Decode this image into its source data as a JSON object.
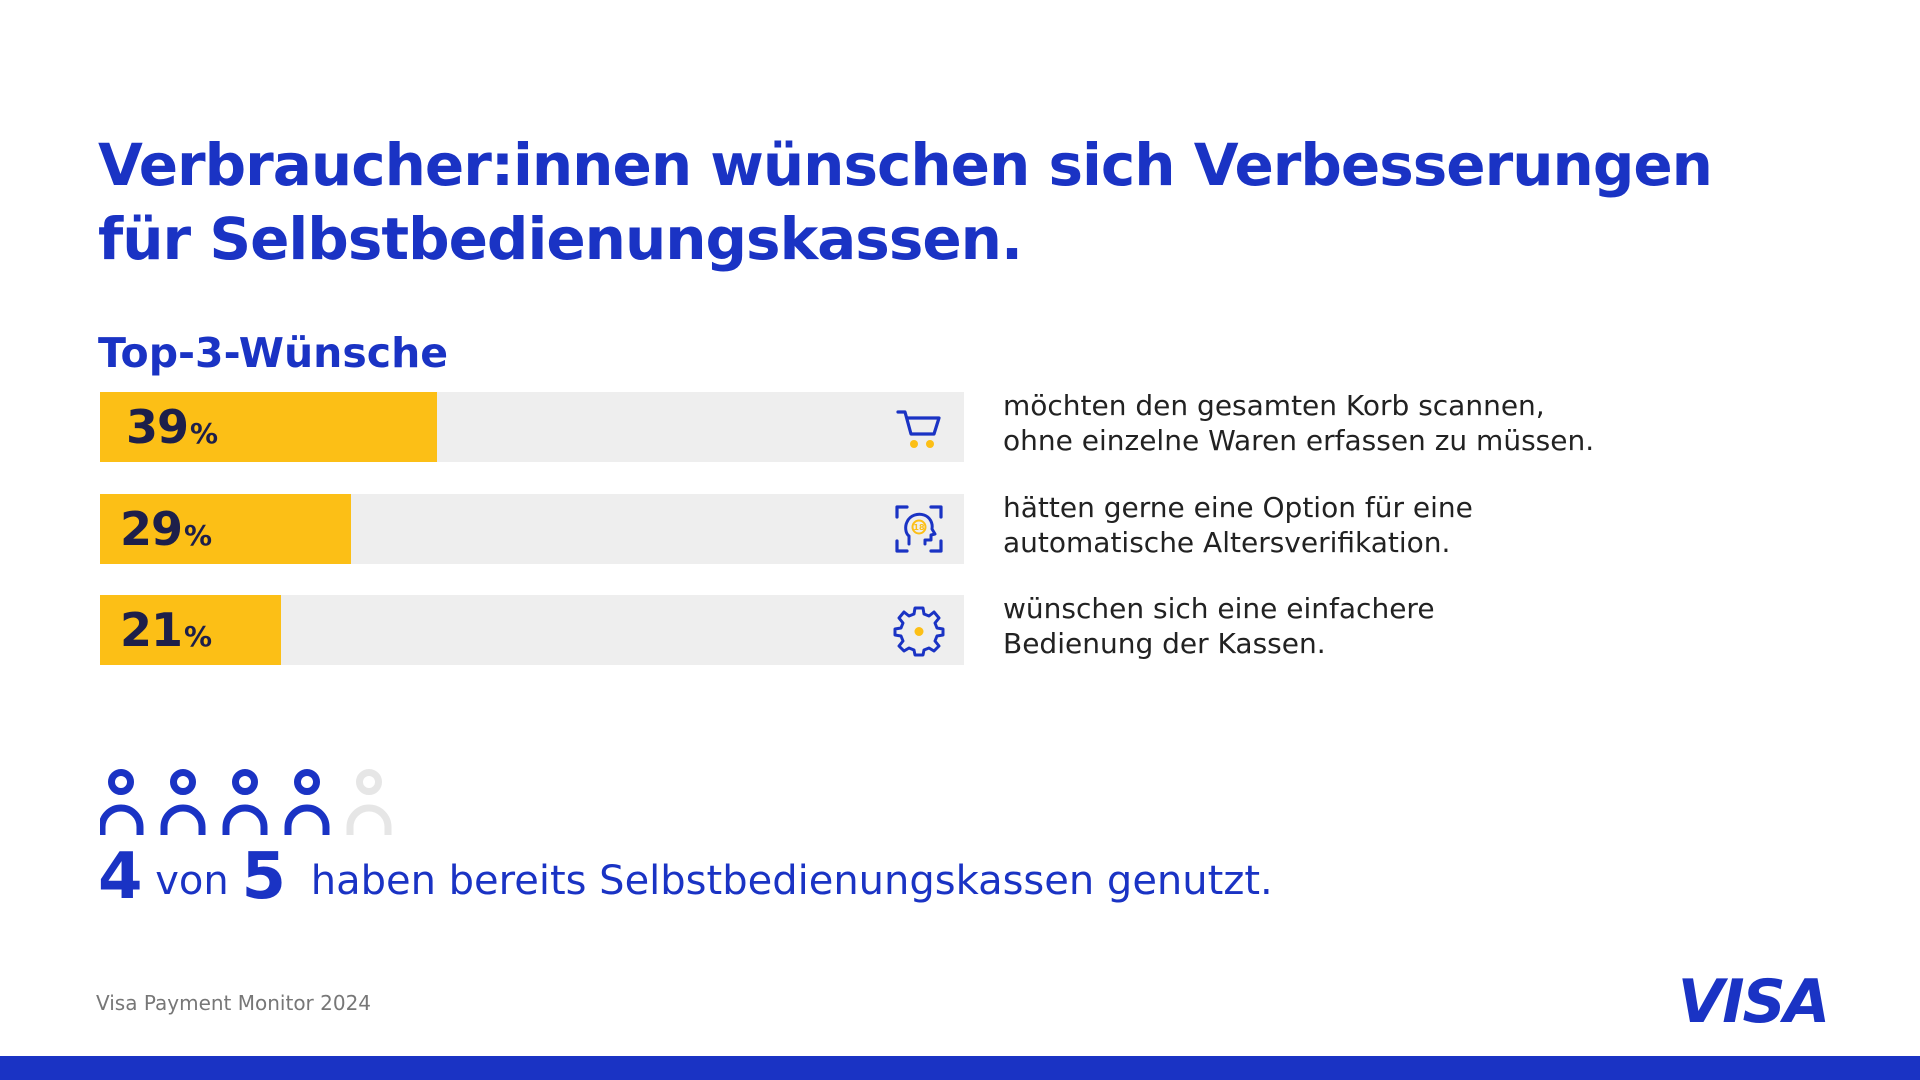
{
  "title_line1": "Verbraucher:innen wünschen sich Verbesserungen",
  "title_line2": "für Selbstbedienungskassen.",
  "subtitle": "Top-3-Wünsche",
  "colors": {
    "brand_blue": "#1a33c4",
    "bar_fill": "#fcbf16",
    "bar_track": "#eeeeee",
    "value_text": "#1d1f4a",
    "person_inactive": "#e6e6e6"
  },
  "chart_data": {
    "type": "bar",
    "orientation": "horizontal",
    "title": "Top-3-Wünsche",
    "xlim": [
      0,
      100
    ],
    "unit": "%",
    "percent_sign": "%",
    "categories": [
      "möchten den gesamten Korb scannen, ohne einzelne Waren erfassen zu müssen.",
      "hätten gerne eine Option für eine automatische Altersverifikation.",
      "wünschen sich eine einfachere Bedienung der Kassen."
    ],
    "values": [
      39,
      29,
      21
    ],
    "rows": [
      {
        "value": 39,
        "value_label": "39",
        "icon": "shopping-cart-icon",
        "text_line1": "möchten den gesamten Korb scannen,",
        "text_line2": "ohne einzelne Waren erfassen zu müssen."
      },
      {
        "value": 29,
        "value_label": "29",
        "icon": "age-verification-face-scan-icon",
        "icon_text": "18",
        "text_line1": "hätten gerne eine Option für eine",
        "text_line2": "automatische Altersverifikation."
      },
      {
        "value": 21,
        "value_label": "21",
        "icon": "gear-icon",
        "text_line1": "wünschen sich eine einfachere",
        "text_line2": "Bedienung der Kassen."
      }
    ]
  },
  "people_stat": {
    "filled": 4,
    "total": 5,
    "number1": "4",
    "word_von": "von",
    "number2": "5",
    "rest": "haben bereits Selbstbedienungskassen genutzt.",
    "icon": "person-icon"
  },
  "source": "Visa Payment Monitor 2024",
  "logo_text": "VISA"
}
